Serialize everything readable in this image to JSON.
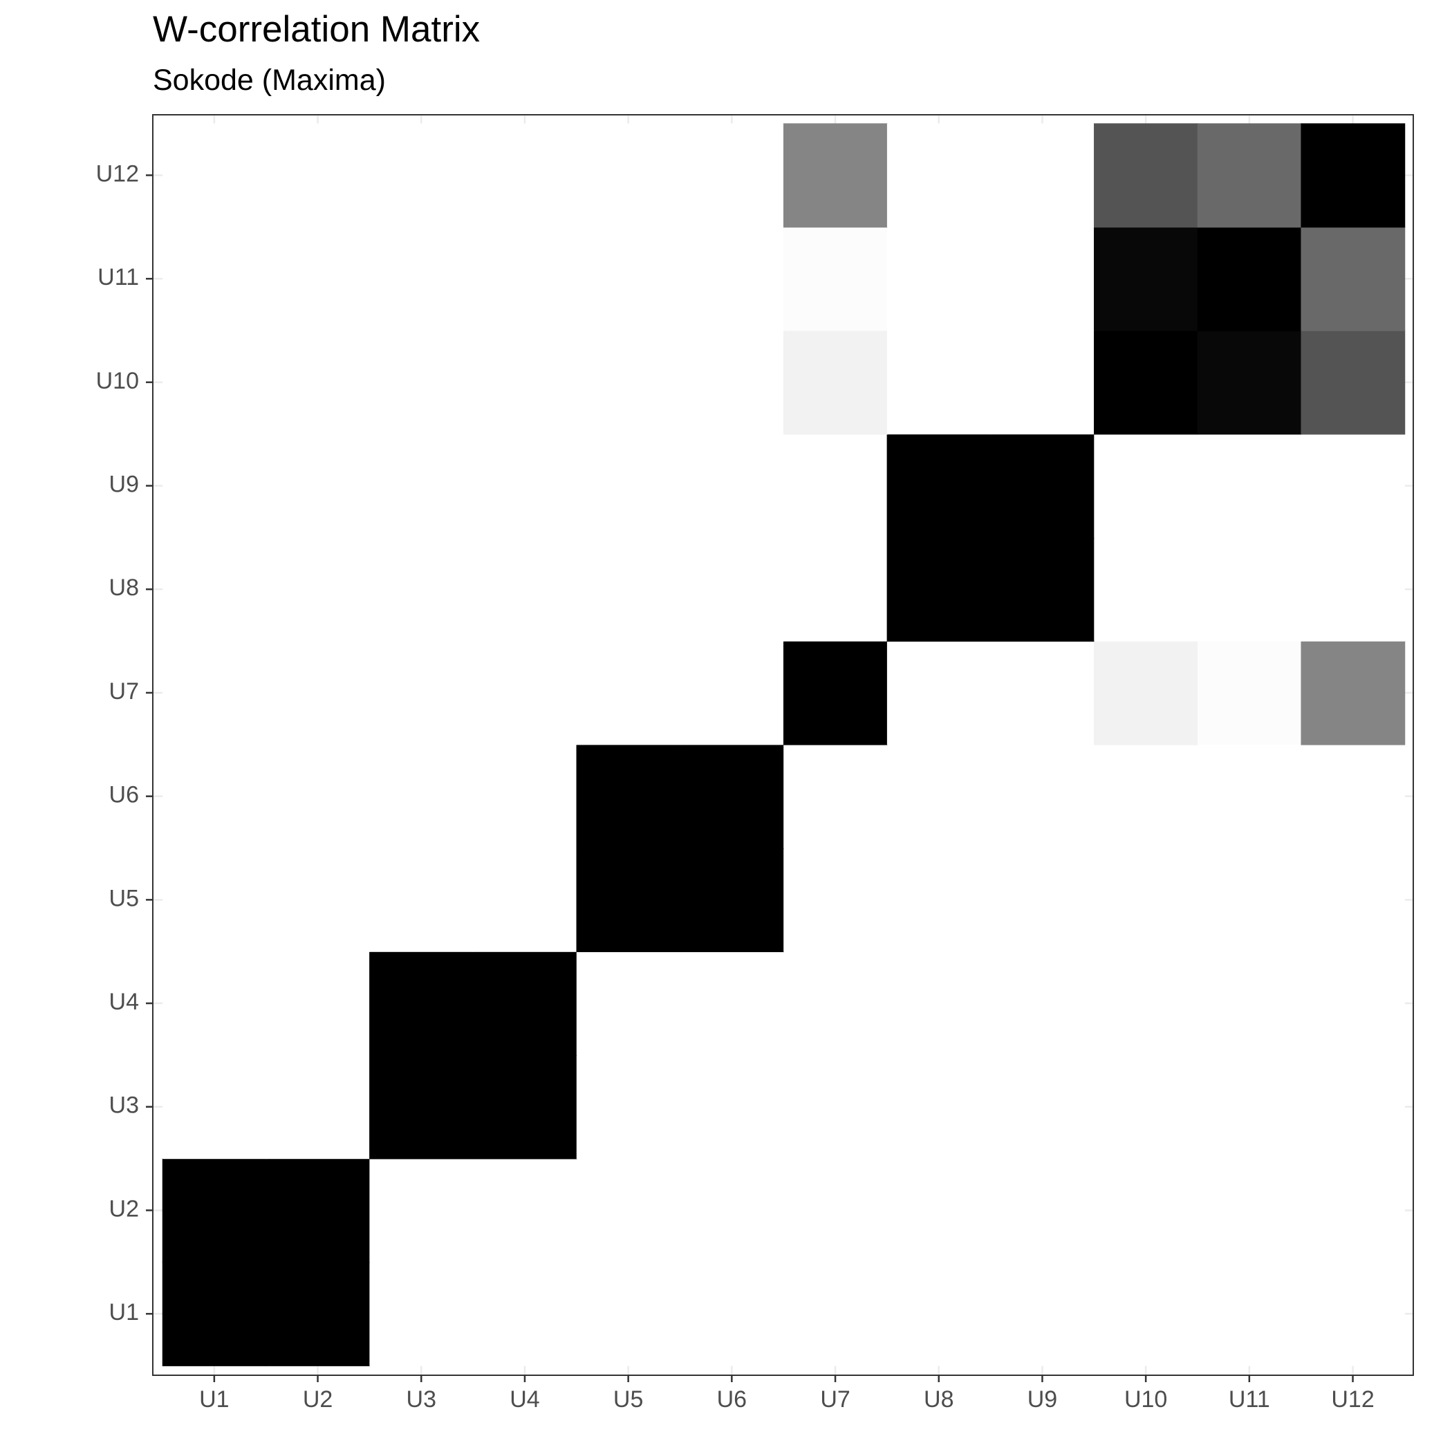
{
  "chart_data": {
    "type": "heatmap",
    "title": "W-correlation Matrix",
    "subtitle": "Sokode (Maxima)",
    "xlabel": "",
    "ylabel": "",
    "x_categories": [
      "U1",
      "U2",
      "U3",
      "U4",
      "U5",
      "U6",
      "U7",
      "U8",
      "U9",
      "U10",
      "U11",
      "U12"
    ],
    "y_categories": [
      "U1",
      "U2",
      "U3",
      "U4",
      "U5",
      "U6",
      "U7",
      "U8",
      "U9",
      "U10",
      "U11",
      "U12"
    ],
    "color_scale": {
      "low": "#ffffff",
      "high": "#000000",
      "range": [
        0,
        1
      ]
    },
    "grid": true,
    "legend": "none",
    "values": [
      [
        1.0,
        1.0,
        0.0,
        0.0,
        0.0,
        0.0,
        0.0,
        0.0,
        0.0,
        0.0,
        0.0,
        0.0
      ],
      [
        1.0,
        1.0,
        0.0,
        0.0,
        0.0,
        0.0,
        0.0,
        0.0,
        0.0,
        0.0,
        0.0,
        0.0
      ],
      [
        0.0,
        0.0,
        1.0,
        1.0,
        0.0,
        0.0,
        0.0,
        0.0,
        0.0,
        0.0,
        0.0,
        0.0
      ],
      [
        0.0,
        0.0,
        1.0,
        1.0,
        0.0,
        0.0,
        0.0,
        0.0,
        0.0,
        0.0,
        0.0,
        0.0
      ],
      [
        0.0,
        0.0,
        0.0,
        0.0,
        1.0,
        1.0,
        0.0,
        0.0,
        0.0,
        0.0,
        0.0,
        0.0
      ],
      [
        0.0,
        0.0,
        0.0,
        0.0,
        1.0,
        1.0,
        0.0,
        0.0,
        0.0,
        0.0,
        0.0,
        0.0
      ],
      [
        0.0,
        0.0,
        0.0,
        0.0,
        0.0,
        0.0,
        1.0,
        0.0,
        0.0,
        0.05,
        0.01,
        0.48
      ],
      [
        0.0,
        0.0,
        0.0,
        0.0,
        0.0,
        0.0,
        0.0,
        1.0,
        1.0,
        0.0,
        0.0,
        0.0
      ],
      [
        0.0,
        0.0,
        0.0,
        0.0,
        0.0,
        0.0,
        0.0,
        1.0,
        1.0,
        0.0,
        0.0,
        0.0
      ],
      [
        0.0,
        0.0,
        0.0,
        0.0,
        0.0,
        0.0,
        0.05,
        0.0,
        0.0,
        1.0,
        0.97,
        0.67
      ],
      [
        0.0,
        0.0,
        0.0,
        0.0,
        0.0,
        0.0,
        0.01,
        0.0,
        0.0,
        0.97,
        1.0,
        0.59
      ],
      [
        0.0,
        0.0,
        0.0,
        0.0,
        0.0,
        0.0,
        0.48,
        0.0,
        0.0,
        0.67,
        0.59,
        1.0
      ]
    ]
  }
}
